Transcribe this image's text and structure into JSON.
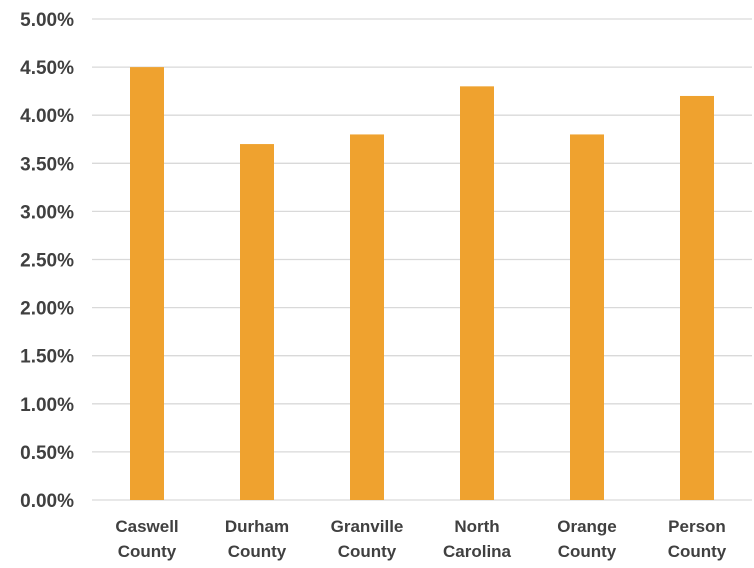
{
  "chart_data": {
    "type": "bar",
    "categories": [
      [
        "Caswell",
        "County"
      ],
      [
        "Durham",
        "County"
      ],
      [
        "Granville",
        "County"
      ],
      [
        "North",
        "Carolina"
      ],
      [
        "Orange",
        "County"
      ],
      [
        "Person",
        "County"
      ]
    ],
    "values": [
      4.5,
      3.7,
      3.8,
      4.3,
      3.8,
      4.2
    ],
    "value_format": "percent",
    "ylim": [
      0,
      5
    ],
    "y_ticks": [
      "0.00%",
      "0.50%",
      "1.00%",
      "1.50%",
      "2.00%",
      "2.50%",
      "3.00%",
      "3.50%",
      "4.00%",
      "4.50%",
      "5.00%"
    ],
    "title": "",
    "xlabel": "",
    "ylabel": "",
    "grid": true,
    "legend": "none",
    "bar_color": "#EFA22F",
    "grid_color": "#D9D9D9",
    "text_color": "#404040"
  }
}
